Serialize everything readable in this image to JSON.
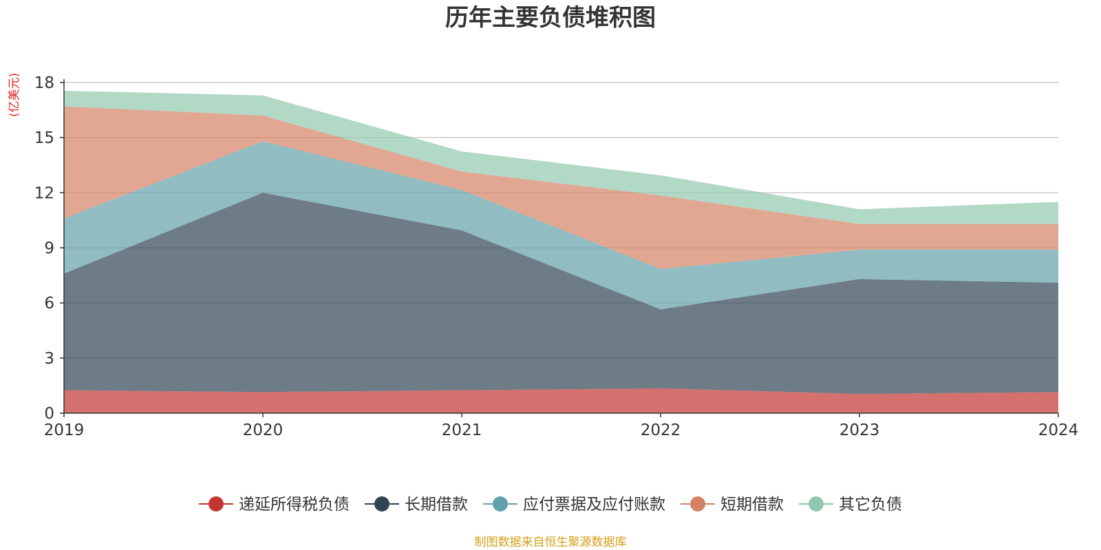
{
  "chart_data": {
    "type": "area",
    "stacked": true,
    "title": "历年主要负债堆积图",
    "y_unit_label": "(亿美元)",
    "x": [
      "2019",
      "2020",
      "2021",
      "2022",
      "2023",
      "2024"
    ],
    "ylim": [
      0,
      18
    ],
    "y_ticks": [
      0,
      3,
      6,
      9,
      12,
      15,
      18
    ],
    "y_tick_labels": [
      "0",
      "3",
      "6",
      "9",
      "12",
      "15",
      "18"
    ],
    "grid": true,
    "legend_position": "bottom",
    "series": [
      {
        "name": "递延所得税负债",
        "color": "#c23531",
        "values": [
          1.25,
          1.15,
          1.25,
          1.35,
          1.05,
          1.15
        ]
      },
      {
        "name": "长期借款",
        "color": "#2f4554",
        "values": [
          6.35,
          10.85,
          8.7,
          4.3,
          6.25,
          5.95
        ]
      },
      {
        "name": "应付票据及应付账款",
        "color": "#61a0a8",
        "values": [
          3.0,
          2.8,
          2.2,
          2.2,
          1.6,
          1.8
        ]
      },
      {
        "name": "短期借款",
        "color": "#d48265",
        "values": [
          6.1,
          1.4,
          1.0,
          4.0,
          1.4,
          1.4
        ]
      },
      {
        "name": "其它负债",
        "color": "#91c7ae",
        "values": [
          0.85,
          1.1,
          1.1,
          1.1,
          0.8,
          1.2
        ]
      }
    ],
    "source_note": "制图数据来自恒生聚源数据库"
  }
}
